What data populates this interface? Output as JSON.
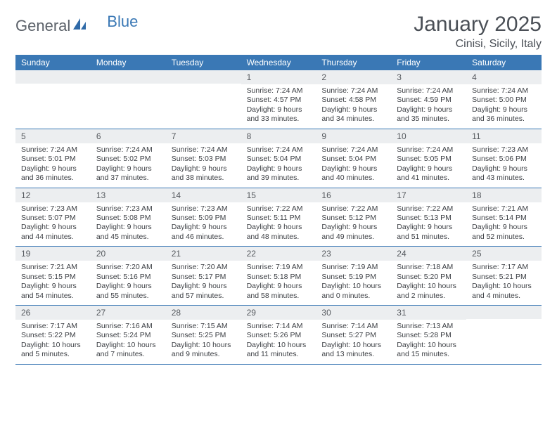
{
  "brand": {
    "part1": "General",
    "part2": "Blue"
  },
  "title": "January 2025",
  "location": "Cinisi, Sicily, Italy",
  "colors": {
    "header_bg": "#3a78b5",
    "daynum_bg": "#eceef0",
    "rule": "#3a78b5",
    "text": "#3c3f44",
    "title_text": "#4a4f56"
  },
  "weekdays": [
    "Sunday",
    "Monday",
    "Tuesday",
    "Wednesday",
    "Thursday",
    "Friday",
    "Saturday"
  ],
  "weeks": [
    [
      {
        "n": "",
        "sunrise": "",
        "sunset": "",
        "daylight": ""
      },
      {
        "n": "",
        "sunrise": "",
        "sunset": "",
        "daylight": ""
      },
      {
        "n": "",
        "sunrise": "",
        "sunset": "",
        "daylight": ""
      },
      {
        "n": "1",
        "sunrise": "Sunrise: 7:24 AM",
        "sunset": "Sunset: 4:57 PM",
        "daylight": "Daylight: 9 hours and 33 minutes."
      },
      {
        "n": "2",
        "sunrise": "Sunrise: 7:24 AM",
        "sunset": "Sunset: 4:58 PM",
        "daylight": "Daylight: 9 hours and 34 minutes."
      },
      {
        "n": "3",
        "sunrise": "Sunrise: 7:24 AM",
        "sunset": "Sunset: 4:59 PM",
        "daylight": "Daylight: 9 hours and 35 minutes."
      },
      {
        "n": "4",
        "sunrise": "Sunrise: 7:24 AM",
        "sunset": "Sunset: 5:00 PM",
        "daylight": "Daylight: 9 hours and 36 minutes."
      }
    ],
    [
      {
        "n": "5",
        "sunrise": "Sunrise: 7:24 AM",
        "sunset": "Sunset: 5:01 PM",
        "daylight": "Daylight: 9 hours and 36 minutes."
      },
      {
        "n": "6",
        "sunrise": "Sunrise: 7:24 AM",
        "sunset": "Sunset: 5:02 PM",
        "daylight": "Daylight: 9 hours and 37 minutes."
      },
      {
        "n": "7",
        "sunrise": "Sunrise: 7:24 AM",
        "sunset": "Sunset: 5:03 PM",
        "daylight": "Daylight: 9 hours and 38 minutes."
      },
      {
        "n": "8",
        "sunrise": "Sunrise: 7:24 AM",
        "sunset": "Sunset: 5:04 PM",
        "daylight": "Daylight: 9 hours and 39 minutes."
      },
      {
        "n": "9",
        "sunrise": "Sunrise: 7:24 AM",
        "sunset": "Sunset: 5:04 PM",
        "daylight": "Daylight: 9 hours and 40 minutes."
      },
      {
        "n": "10",
        "sunrise": "Sunrise: 7:24 AM",
        "sunset": "Sunset: 5:05 PM",
        "daylight": "Daylight: 9 hours and 41 minutes."
      },
      {
        "n": "11",
        "sunrise": "Sunrise: 7:23 AM",
        "sunset": "Sunset: 5:06 PM",
        "daylight": "Daylight: 9 hours and 43 minutes."
      }
    ],
    [
      {
        "n": "12",
        "sunrise": "Sunrise: 7:23 AM",
        "sunset": "Sunset: 5:07 PM",
        "daylight": "Daylight: 9 hours and 44 minutes."
      },
      {
        "n": "13",
        "sunrise": "Sunrise: 7:23 AM",
        "sunset": "Sunset: 5:08 PM",
        "daylight": "Daylight: 9 hours and 45 minutes."
      },
      {
        "n": "14",
        "sunrise": "Sunrise: 7:23 AM",
        "sunset": "Sunset: 5:09 PM",
        "daylight": "Daylight: 9 hours and 46 minutes."
      },
      {
        "n": "15",
        "sunrise": "Sunrise: 7:22 AM",
        "sunset": "Sunset: 5:11 PM",
        "daylight": "Daylight: 9 hours and 48 minutes."
      },
      {
        "n": "16",
        "sunrise": "Sunrise: 7:22 AM",
        "sunset": "Sunset: 5:12 PM",
        "daylight": "Daylight: 9 hours and 49 minutes."
      },
      {
        "n": "17",
        "sunrise": "Sunrise: 7:22 AM",
        "sunset": "Sunset: 5:13 PM",
        "daylight": "Daylight: 9 hours and 51 minutes."
      },
      {
        "n": "18",
        "sunrise": "Sunrise: 7:21 AM",
        "sunset": "Sunset: 5:14 PM",
        "daylight": "Daylight: 9 hours and 52 minutes."
      }
    ],
    [
      {
        "n": "19",
        "sunrise": "Sunrise: 7:21 AM",
        "sunset": "Sunset: 5:15 PM",
        "daylight": "Daylight: 9 hours and 54 minutes."
      },
      {
        "n": "20",
        "sunrise": "Sunrise: 7:20 AM",
        "sunset": "Sunset: 5:16 PM",
        "daylight": "Daylight: 9 hours and 55 minutes."
      },
      {
        "n": "21",
        "sunrise": "Sunrise: 7:20 AM",
        "sunset": "Sunset: 5:17 PM",
        "daylight": "Daylight: 9 hours and 57 minutes."
      },
      {
        "n": "22",
        "sunrise": "Sunrise: 7:19 AM",
        "sunset": "Sunset: 5:18 PM",
        "daylight": "Daylight: 9 hours and 58 minutes."
      },
      {
        "n": "23",
        "sunrise": "Sunrise: 7:19 AM",
        "sunset": "Sunset: 5:19 PM",
        "daylight": "Daylight: 10 hours and 0 minutes."
      },
      {
        "n": "24",
        "sunrise": "Sunrise: 7:18 AM",
        "sunset": "Sunset: 5:20 PM",
        "daylight": "Daylight: 10 hours and 2 minutes."
      },
      {
        "n": "25",
        "sunrise": "Sunrise: 7:17 AM",
        "sunset": "Sunset: 5:21 PM",
        "daylight": "Daylight: 10 hours and 4 minutes."
      }
    ],
    [
      {
        "n": "26",
        "sunrise": "Sunrise: 7:17 AM",
        "sunset": "Sunset: 5:22 PM",
        "daylight": "Daylight: 10 hours and 5 minutes."
      },
      {
        "n": "27",
        "sunrise": "Sunrise: 7:16 AM",
        "sunset": "Sunset: 5:24 PM",
        "daylight": "Daylight: 10 hours and 7 minutes."
      },
      {
        "n": "28",
        "sunrise": "Sunrise: 7:15 AM",
        "sunset": "Sunset: 5:25 PM",
        "daylight": "Daylight: 10 hours and 9 minutes."
      },
      {
        "n": "29",
        "sunrise": "Sunrise: 7:14 AM",
        "sunset": "Sunset: 5:26 PM",
        "daylight": "Daylight: 10 hours and 11 minutes."
      },
      {
        "n": "30",
        "sunrise": "Sunrise: 7:14 AM",
        "sunset": "Sunset: 5:27 PM",
        "daylight": "Daylight: 10 hours and 13 minutes."
      },
      {
        "n": "31",
        "sunrise": "Sunrise: 7:13 AM",
        "sunset": "Sunset: 5:28 PM",
        "daylight": "Daylight: 10 hours and 15 minutes."
      },
      {
        "n": "",
        "sunrise": "",
        "sunset": "",
        "daylight": ""
      }
    ]
  ]
}
